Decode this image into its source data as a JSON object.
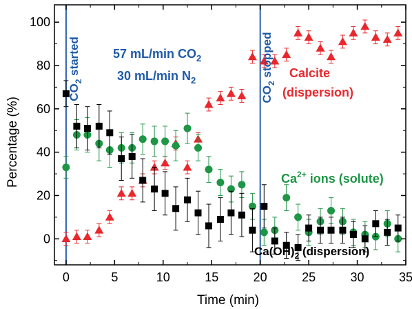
{
  "chart_data": {
    "type": "scatter",
    "xlabel": "Time (min)",
    "ylabel": "Percentage (%)",
    "xlim": [
      -1.2,
      35
    ],
    "ylim": [
      -12,
      108
    ],
    "xticks": [
      "0",
      "5",
      "10",
      "15",
      "20",
      "25",
      "30",
      "35"
    ],
    "yticks": [
      "0",
      "20",
      "40",
      "60",
      "80",
      "100"
    ],
    "vlines": [
      0,
      20
    ],
    "colors": {
      "calcite": "#e8282d",
      "ions": "#1e9646",
      "caoh": "#000000",
      "guide": "#2b5fb0",
      "annotation_blue": "#1f5aa8"
    },
    "series": [
      {
        "key": "calcite",
        "marker": "triangle",
        "points": [
          [
            0,
            0,
            3
          ],
          [
            1.1,
            1,
            3
          ],
          [
            2.2,
            1,
            3
          ],
          [
            3.4,
            4,
            3
          ],
          [
            4.5,
            10,
            3
          ],
          [
            5.7,
            21,
            3
          ],
          [
            6.8,
            21,
            3
          ],
          [
            7.9,
            27,
            3
          ],
          [
            9.1,
            33,
            3
          ],
          [
            10.2,
            35,
            3
          ],
          [
            11.3,
            44,
            3
          ],
          [
            12.5,
            33,
            3
          ],
          [
            13.6,
            46,
            3
          ],
          [
            14.7,
            62,
            3
          ],
          [
            15.9,
            65,
            3
          ],
          [
            17,
            67,
            3
          ],
          [
            18.1,
            66,
            3
          ],
          [
            19.2,
            84,
            3
          ],
          [
            20.4,
            82,
            3
          ],
          [
            21.5,
            82,
            3
          ],
          [
            22.7,
            85,
            3
          ],
          [
            23.9,
            95,
            3
          ],
          [
            25,
            93,
            3
          ],
          [
            26.2,
            88,
            3
          ],
          [
            27.3,
            84,
            3
          ],
          [
            28.5,
            91,
            3
          ],
          [
            29.6,
            95,
            3
          ],
          [
            30.8,
            98,
            3
          ],
          [
            31.9,
            93,
            3
          ],
          [
            33.1,
            92,
            3
          ],
          [
            34.2,
            95,
            3
          ]
        ]
      },
      {
        "key": "ions",
        "marker": "circle",
        "points": [
          [
            0,
            33,
            5
          ],
          [
            1.1,
            48,
            7
          ],
          [
            2.2,
            48,
            8
          ],
          [
            3.4,
            44,
            8
          ],
          [
            4.5,
            41,
            8
          ],
          [
            5.7,
            42,
            7
          ],
          [
            6.8,
            42,
            7
          ],
          [
            7.9,
            46,
            7
          ],
          [
            9.1,
            45,
            7
          ],
          [
            10.2,
            45,
            7
          ],
          [
            11.3,
            43,
            7
          ],
          [
            12.5,
            51,
            7
          ],
          [
            13.6,
            42,
            6
          ],
          [
            14.7,
            32,
            6
          ],
          [
            15.9,
            26,
            6
          ],
          [
            17,
            23,
            6
          ],
          [
            18.1,
            25,
            6
          ],
          [
            19.2,
            15,
            6
          ],
          [
            20.4,
            3,
            6
          ],
          [
            21.5,
            4,
            6
          ],
          [
            22.7,
            19,
            6
          ],
          [
            23.9,
            10,
            6
          ],
          [
            25,
            3,
            6
          ],
          [
            26.2,
            8,
            6
          ],
          [
            27.3,
            13,
            6
          ],
          [
            28.5,
            8,
            6
          ],
          [
            29.6,
            3,
            6
          ],
          [
            30.8,
            2,
            6
          ],
          [
            31.9,
            1,
            6
          ],
          [
            33.1,
            7,
            6
          ],
          [
            34.2,
            0,
            6
          ]
        ]
      },
      {
        "key": "caoh",
        "marker": "square",
        "points": [
          [
            0,
            67,
            6
          ],
          [
            1.1,
            52,
            10
          ],
          [
            2.2,
            51,
            10
          ],
          [
            3.4,
            52,
            10
          ],
          [
            4.5,
            49,
            10
          ],
          [
            5.7,
            37,
            10
          ],
          [
            6.8,
            38,
            10
          ],
          [
            7.9,
            27,
            10
          ],
          [
            9.1,
            23,
            10
          ],
          [
            10.2,
            21,
            10
          ],
          [
            11.3,
            14,
            10
          ],
          [
            12.5,
            18,
            10
          ],
          [
            13.6,
            12,
            10
          ],
          [
            14.7,
            6,
            10
          ],
          [
            15.9,
            9,
            10
          ],
          [
            17,
            12,
            10
          ],
          [
            18.1,
            11,
            10
          ],
          [
            19.2,
            4,
            10
          ],
          [
            20.4,
            15,
            10
          ],
          [
            21.5,
            -1,
            6
          ],
          [
            22.7,
            -3,
            6
          ],
          [
            23.9,
            -4,
            6
          ],
          [
            25,
            5,
            6
          ],
          [
            26.2,
            4,
            6
          ],
          [
            27.3,
            4,
            6
          ],
          [
            28.5,
            4,
            6
          ],
          [
            29.6,
            2,
            6
          ],
          [
            30.8,
            0,
            6
          ],
          [
            31.9,
            7,
            6
          ],
          [
            33.1,
            3,
            6
          ],
          [
            34.2,
            5,
            6
          ]
        ]
      }
    ],
    "annotations": {
      "co2_started": "CO",
      "co2_started_sub": "2",
      "co2_started_rest": " started",
      "co2_stopped": "CO",
      "co2_stopped_sub": "2",
      "co2_stopped_rest": " stopped",
      "flow1_a": "57 mL/min CO",
      "flow1_sub": "2",
      "flow2_a": "30 mL/min N",
      "flow2_sub": "2",
      "calcite1": "Calcite",
      "calcite2": "(dispersion)",
      "ions_a": "Ca",
      "ions_sup": "2+",
      "ions_b": " ions (solute)",
      "caoh_a": "Ca(OH)",
      "caoh_sub": "2",
      "caoh_b": " (dispersion)"
    }
  }
}
